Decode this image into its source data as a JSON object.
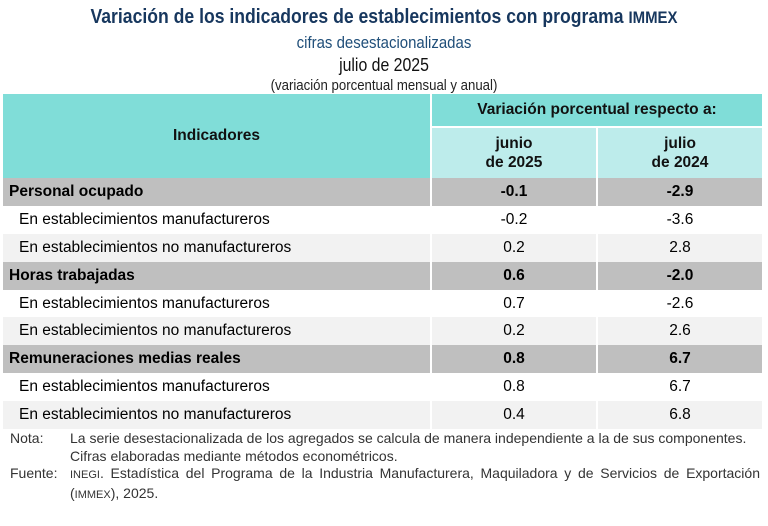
{
  "header": {
    "title": "Variación de los indicadores de establecimientos con programa",
    "title_suffix": "IMMEX",
    "subtitle": "cifras desestacionalizadas",
    "period": "julio de 2025",
    "unit": "(variación porcentual mensual y anual)"
  },
  "table": {
    "col_indicadores": "Indicadores",
    "col_group": "Variación porcentual respecto a:",
    "col1": [
      "junio",
      "de 2025"
    ],
    "col2": [
      "julio",
      "de 2024"
    ],
    "rows": [
      {
        "label": "Personal ocupado",
        "v1": "-0.1",
        "v2": "-2.9"
      },
      {
        "label": "En establecimientos manufactureros",
        "v1": "-0.2",
        "v2": "-3.6"
      },
      {
        "label": "En establecimientos no manufactureros",
        "v1": "0.2",
        "v2": "2.8"
      },
      {
        "label": "Horas trabajadas",
        "v1": "0.6",
        "v2": "-2.0"
      },
      {
        "label": "En establecimientos manufactureros",
        "v1": "0.7",
        "v2": "-2.6"
      },
      {
        "label": "En establecimientos no manufactureros",
        "v1": "0.2",
        "v2": "2.6"
      },
      {
        "label": "Remuneraciones medias reales",
        "v1": "0.8",
        "v2": "6.7"
      },
      {
        "label": "En establecimientos manufactureros",
        "v1": "0.8",
        "v2": "6.7"
      },
      {
        "label": "En establecimientos no manufactureros",
        "v1": "0.4",
        "v2": "6.8"
      }
    ]
  },
  "notes": {
    "nota_label": "Nota:",
    "nota_1": "La serie desestacionalizada de los agregados se calcula de manera independiente a la de sus componentes.",
    "nota_2": "Cifras elaboradas mediante métodos econométricos.",
    "fuente_label": "Fuente:",
    "fuente_org": "INEGI",
    "fuente_text": ". Estadística del Programa de la Industria Manufacturera, Maquiladora y de Servicios de Exportación (",
    "fuente_abbr": "IMMEX",
    "fuente_end": "), 2025."
  },
  "colors": {
    "header": "#80ddd8",
    "subheader": "#bdeceb",
    "section": "#bfbfbf",
    "title": "#17375e"
  }
}
